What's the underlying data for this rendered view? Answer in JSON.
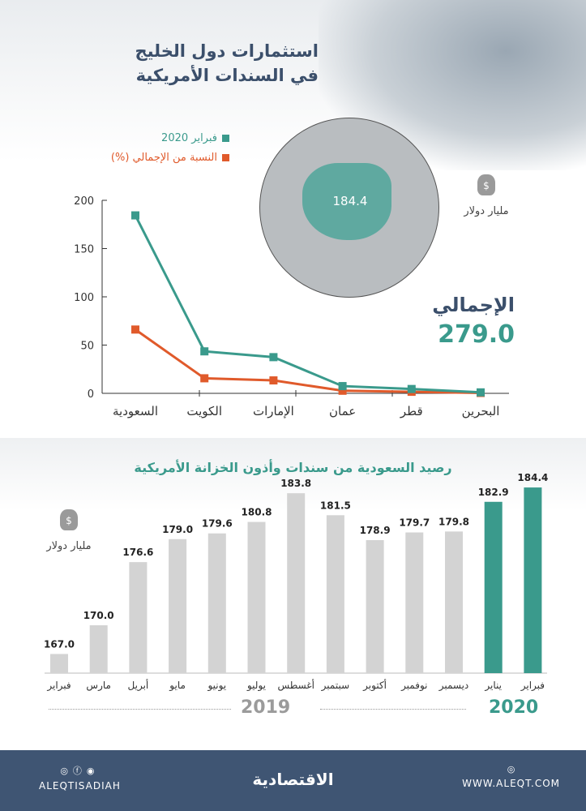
{
  "header": {
    "title_line1": "استثمارات دول الخليج",
    "title_line2": "في السندات الأمريكية"
  },
  "colors": {
    "teal": "#3a9a8c",
    "orange": "#e05a2b",
    "gray_bar": "#d3d3d3",
    "navy": "#3f5573"
  },
  "map": {
    "value": "184.4"
  },
  "unit_label": "مليار دولار",
  "money_bag_icon": "money-bag-icon",
  "total": {
    "label": "الإجمالي",
    "value": "279.0"
  },
  "chart_data": [
    {
      "type": "line",
      "categories": [
        "السعودية",
        "الكويت",
        "الإمارات",
        "عمان",
        "قطر",
        "البحرين"
      ],
      "series": [
        {
          "name": "فبراير 2020",
          "color": "#3a9a8c",
          "values": [
            184.4,
            43.5,
            37.5,
            7.5,
            4.5,
            1.0
          ]
        },
        {
          "name": "النسبة من الإجمالي (%)",
          "color": "#e05a2b",
          "values": [
            66.1,
            15.6,
            13.4,
            2.7,
            1.6,
            0.4
          ]
        }
      ],
      "ylim": [
        0,
        200
      ],
      "yticks": [
        0,
        50,
        100,
        150,
        200
      ],
      "legend": "top-left"
    },
    {
      "type": "bar",
      "title": "رصيد السعودية من سندات وأذون الخزانة الأمريكية",
      "categories": [
        "فبراير",
        "مارس",
        "أبريل",
        "مايو",
        "يونيو",
        "يوليو",
        "أغسطس",
        "سبتمبر",
        "أكتوبر",
        "نوفمبر",
        "ديسمبر",
        "يناير",
        "فبراير"
      ],
      "values": [
        167.0,
        170.0,
        176.6,
        179.0,
        179.6,
        180.8,
        183.8,
        181.5,
        178.9,
        179.7,
        179.8,
        182.9,
        184.4
      ],
      "labels": [
        "167.0",
        "170.0",
        "176.6",
        "179.0",
        "179.6",
        "180.8",
        "183.8",
        "181.5",
        "178.9",
        "179.7",
        "179.8",
        "182.9",
        "184.4"
      ],
      "years": [
        "2019",
        "2020"
      ],
      "highlight_from": 11,
      "ylim": [
        165,
        186
      ]
    }
  ],
  "footer": {
    "social": "ALEQTISADIAH",
    "logo": "الاقتصادية",
    "website": "WWW.ALEQT.COM"
  }
}
